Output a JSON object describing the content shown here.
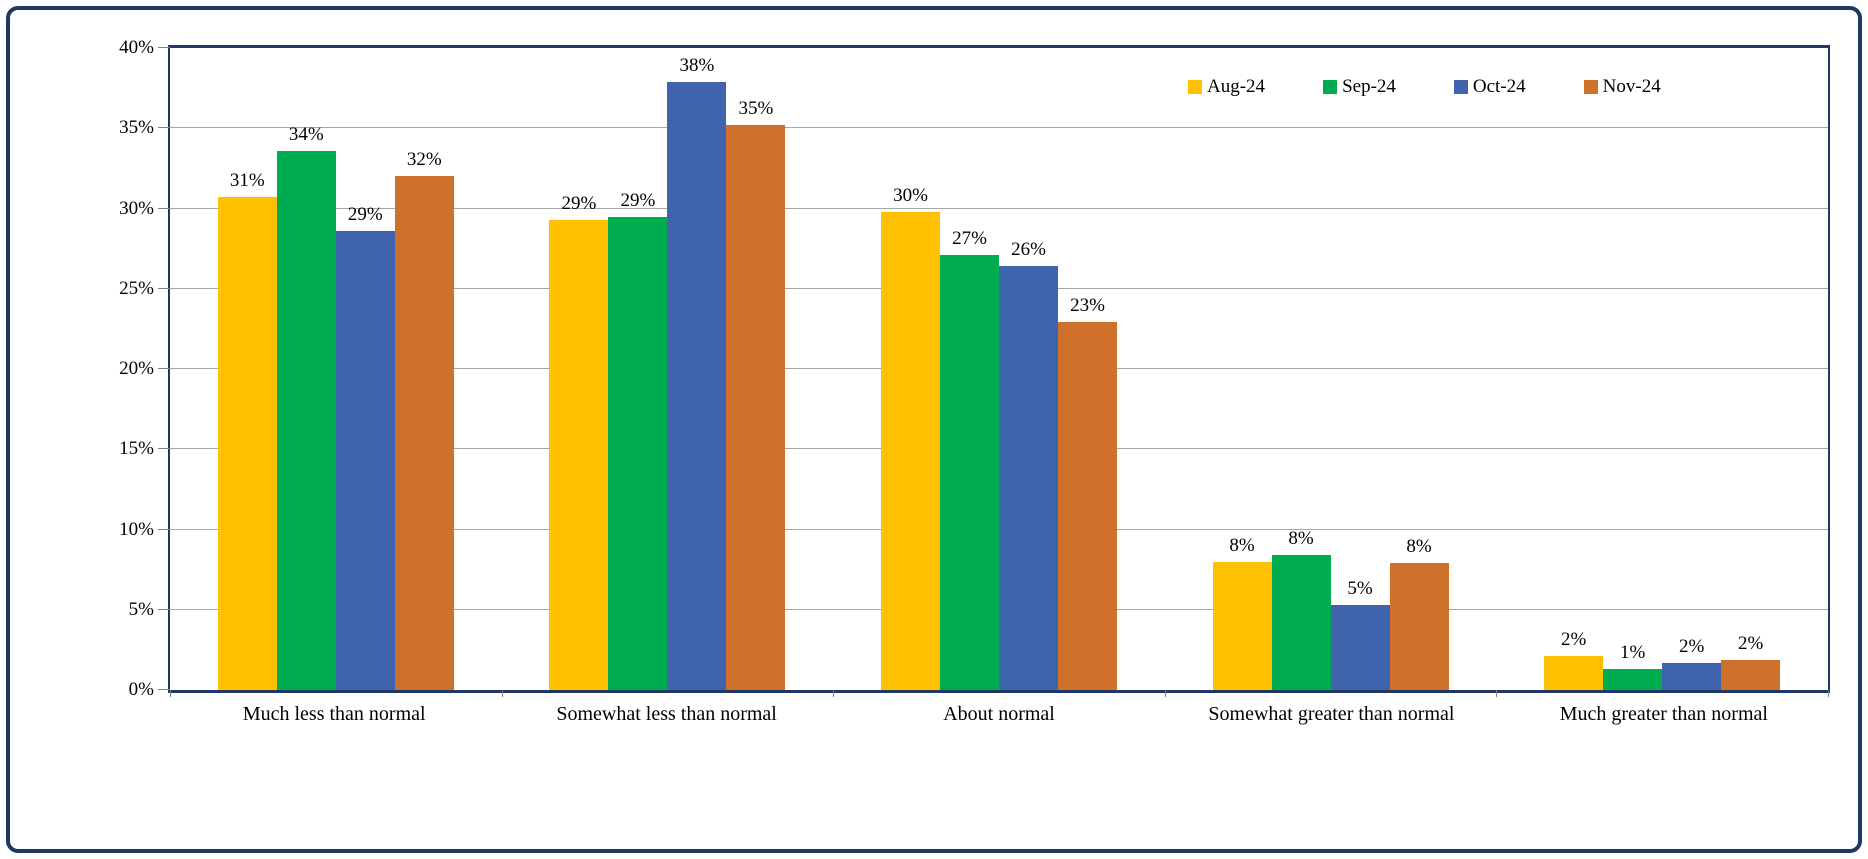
{
  "chart_data": {
    "type": "bar",
    "title": "",
    "xlabel": "",
    "ylabel": "",
    "categories": [
      "Much less than normal",
      "Somewhat less than normal",
      "About normal",
      "Somewhat greater than normal",
      "Much greater than normal"
    ],
    "series": [
      {
        "name": "Aug-24",
        "color": "#FFC000",
        "values": [
          30.7,
          29.3,
          29.8,
          8.0,
          2.1
        ],
        "data_labels": [
          "31%",
          "29%",
          "30%",
          "8%",
          "2%"
        ]
      },
      {
        "name": "Sep-24",
        "color": "#00AC50",
        "values": [
          33.6,
          29.5,
          27.1,
          8.4,
          1.3
        ],
        "data_labels": [
          "34%",
          "29%",
          "27%",
          "8%",
          "1%"
        ]
      },
      {
        "name": "Oct-24",
        "color": "#3F63AD",
        "values": [
          28.6,
          37.9,
          26.4,
          5.3,
          1.7
        ],
        "data_labels": [
          "29%",
          "38%",
          "26%",
          "5%",
          "2%"
        ]
      },
      {
        "name": "Nov-24",
        "color": "#D0712B",
        "values": [
          32.0,
          35.2,
          22.9,
          7.9,
          1.9
        ],
        "data_labels": [
          "32%",
          "35%",
          "23%",
          "8%",
          "2%"
        ]
      }
    ],
    "ylim": [
      0,
      40
    ],
    "ytick_step": 5,
    "ytick_labels": [
      "0%",
      "5%",
      "10%",
      "15%",
      "20%",
      "25%",
      "30%",
      "35%",
      "40%"
    ],
    "grid": "horizontal",
    "legend_position": "top-right",
    "legend_entries": [
      "Aug-24",
      "Sep-24",
      "Oct-24",
      "Nov-24"
    ]
  },
  "colors": {
    "frame": "#1F3864",
    "axis": "#1F3864",
    "gridline": "#A6A6A6",
    "tick": "#7F7F7F",
    "text": "#000000"
  }
}
